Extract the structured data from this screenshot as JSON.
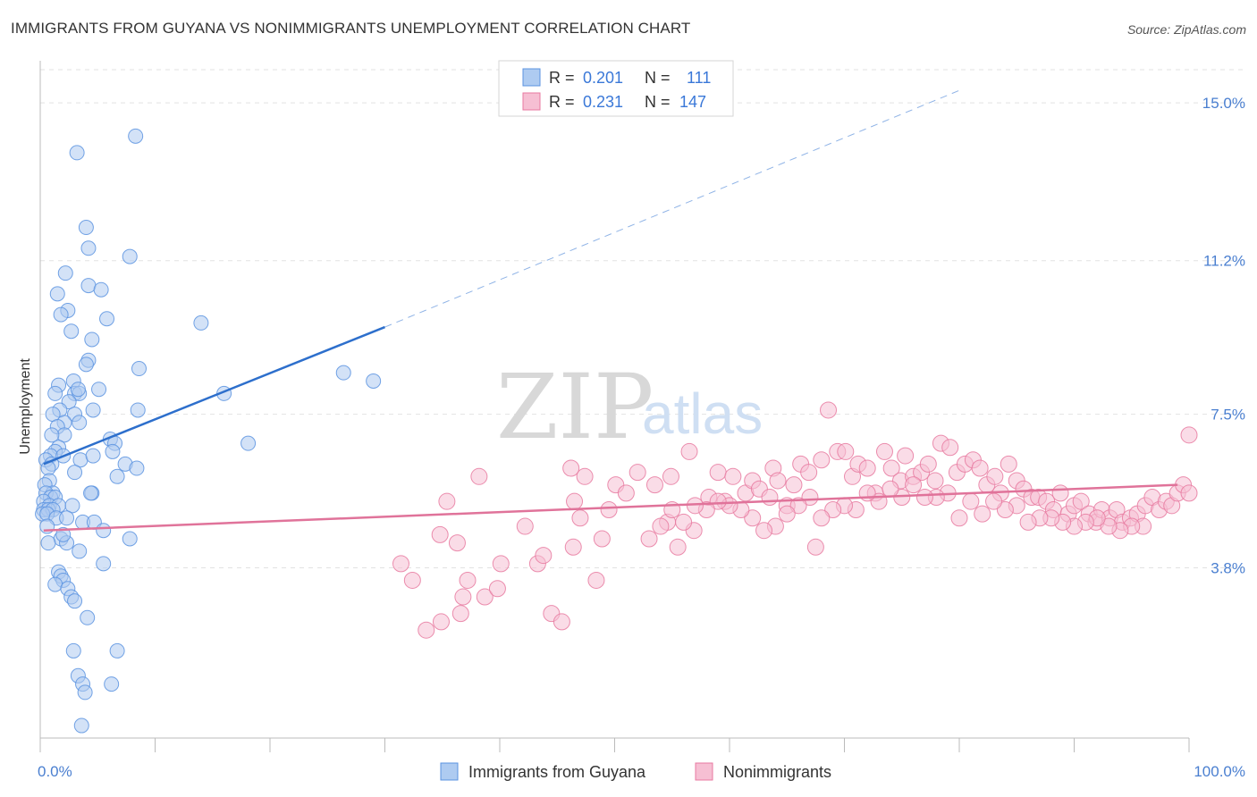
{
  "title": "IMMIGRANTS FROM GUYANA VS NONIMMIGRANTS UNEMPLOYMENT CORRELATION CHART",
  "source": "Source: ZipAtlas.com",
  "watermark": {
    "zip": "ZIP",
    "atlas": "atlas"
  },
  "chart_data": {
    "type": "scatter",
    "ylabel": "Unemployment",
    "xlabel": "",
    "xlim": [
      0,
      100
    ],
    "ylim": [
      -0.3,
      15.8
    ],
    "y_ticks": [
      {
        "value": 15.0,
        "label": "15.0%"
      },
      {
        "value": 11.2,
        "label": "11.2%"
      },
      {
        "value": 7.5,
        "label": "7.5%"
      },
      {
        "value": 3.8,
        "label": "3.8%"
      }
    ],
    "x_tick_labels": {
      "left": "0.0%",
      "right": "100.0%"
    },
    "legend": {
      "rows": [
        {
          "r_label": "R =",
          "r_value": "0.201",
          "n_label": "N =",
          "n_value": "111"
        },
        {
          "r_label": "R =",
          "r_value": "0.231",
          "n_label": "N =",
          "n_value": "147"
        }
      ]
    },
    "series": [
      {
        "name": "Immigrants from Guyana",
        "color": "#5b93e0",
        "fill": "#aecbf1",
        "trend": {
          "x0": 0.3,
          "y0": 6.3,
          "x1": 30,
          "y1": 9.6,
          "x_end": 80,
          "y_end": 15.3
        },
        "points": [
          [
            3.2,
            13.8
          ],
          [
            8.3,
            14.2
          ],
          [
            4.0,
            12.0
          ],
          [
            4.2,
            11.5
          ],
          [
            7.8,
            11.3
          ],
          [
            2.2,
            10.9
          ],
          [
            1.5,
            10.4
          ],
          [
            4.2,
            10.6
          ],
          [
            5.3,
            10.5
          ],
          [
            2.4,
            10.0
          ],
          [
            1.8,
            9.9
          ],
          [
            5.8,
            9.8
          ],
          [
            2.7,
            9.5
          ],
          [
            14.0,
            9.7
          ],
          [
            4.5,
            9.3
          ],
          [
            4.2,
            8.8
          ],
          [
            4.0,
            8.7
          ],
          [
            8.6,
            8.6
          ],
          [
            26.4,
            8.5
          ],
          [
            29.0,
            8.3
          ],
          [
            2.9,
            8.3
          ],
          [
            1.6,
            8.2
          ],
          [
            3.0,
            8.0
          ],
          [
            3.4,
            8.0
          ],
          [
            3.3,
            8.1
          ],
          [
            5.1,
            8.1
          ],
          [
            1.3,
            8.0
          ],
          [
            16.0,
            8.0
          ],
          [
            2.5,
            7.8
          ],
          [
            1.7,
            7.6
          ],
          [
            3.0,
            7.5
          ],
          [
            4.6,
            7.6
          ],
          [
            8.5,
            7.6
          ],
          [
            1.1,
            7.5
          ],
          [
            2.1,
            7.3
          ],
          [
            1.5,
            7.2
          ],
          [
            3.4,
            7.3
          ],
          [
            2.1,
            7.0
          ],
          [
            1.0,
            7.0
          ],
          [
            6.1,
            6.9
          ],
          [
            6.5,
            6.8
          ],
          [
            1.6,
            6.7
          ],
          [
            18.1,
            6.8
          ],
          [
            1.3,
            6.6
          ],
          [
            0.9,
            6.5
          ],
          [
            3.5,
            6.4
          ],
          [
            4.6,
            6.5
          ],
          [
            6.3,
            6.6
          ],
          [
            0.5,
            6.4
          ],
          [
            1.0,
            6.3
          ],
          [
            0.7,
            6.2
          ],
          [
            7.4,
            6.3
          ],
          [
            8.4,
            6.2
          ],
          [
            3.0,
            6.1
          ],
          [
            6.7,
            6.0
          ],
          [
            0.8,
            5.9
          ],
          [
            0.4,
            5.8
          ],
          [
            4.5,
            5.6
          ],
          [
            1.1,
            5.6
          ],
          [
            0.5,
            5.6
          ],
          [
            0.9,
            5.5
          ],
          [
            1.3,
            5.5
          ],
          [
            0.3,
            5.4
          ],
          [
            0.8,
            5.3
          ],
          [
            1.6,
            5.3
          ],
          [
            2.8,
            5.3
          ],
          [
            0.3,
            5.2
          ],
          [
            0.7,
            5.2
          ],
          [
            1.1,
            5.2
          ],
          [
            0.2,
            5.1
          ],
          [
            0.6,
            5.1
          ],
          [
            1.4,
            5.0
          ],
          [
            2.3,
            5.0
          ],
          [
            3.7,
            4.9
          ],
          [
            4.7,
            4.9
          ],
          [
            0.6,
            4.8
          ],
          [
            5.5,
            4.7
          ],
          [
            1.8,
            4.5
          ],
          [
            2.3,
            4.4
          ],
          [
            7.8,
            4.5
          ],
          [
            0.7,
            4.4
          ],
          [
            5.5,
            3.9
          ],
          [
            1.6,
            3.7
          ],
          [
            1.8,
            3.6
          ],
          [
            2.0,
            3.5
          ],
          [
            1.3,
            3.4
          ],
          [
            2.4,
            3.3
          ],
          [
            2.7,
            3.1
          ],
          [
            3.0,
            3.0
          ],
          [
            4.1,
            2.6
          ],
          [
            2.9,
            1.8
          ],
          [
            6.7,
            1.8
          ],
          [
            3.3,
            1.2
          ],
          [
            3.7,
            1.0
          ],
          [
            6.2,
            1.0
          ],
          [
            3.9,
            0.8
          ],
          [
            3.6,
            0.0
          ],
          [
            2.0,
            4.6
          ],
          [
            3.4,
            4.2
          ],
          [
            4.4,
            5.6
          ],
          [
            2.0,
            6.5
          ]
        ]
      },
      {
        "name": "Nonimmigrants",
        "color": "#e87aa0",
        "fill": "#f6bfd3",
        "trend": {
          "x0": 0.3,
          "y0": 4.7,
          "x1": 99,
          "y1": 5.8
        },
        "points": [
          [
            35.4,
            5.4
          ],
          [
            38.2,
            6.0
          ],
          [
            34.8,
            4.6
          ],
          [
            36.3,
            4.4
          ],
          [
            37.2,
            3.5
          ],
          [
            36.8,
            3.1
          ],
          [
            32.4,
            3.5
          ],
          [
            31.4,
            3.9
          ],
          [
            34.9,
            2.5
          ],
          [
            33.6,
            2.3
          ],
          [
            36.6,
            2.7
          ],
          [
            38.7,
            3.1
          ],
          [
            39.8,
            3.3
          ],
          [
            40.1,
            3.9
          ],
          [
            43.3,
            3.9
          ],
          [
            42.2,
            4.8
          ],
          [
            43.8,
            4.1
          ],
          [
            44.5,
            2.7
          ],
          [
            45.4,
            2.5
          ],
          [
            46.4,
            4.3
          ],
          [
            47.0,
            5.0
          ],
          [
            46.5,
            5.4
          ],
          [
            47.4,
            6.0
          ],
          [
            46.2,
            6.2
          ],
          [
            48.4,
            3.5
          ],
          [
            48.9,
            4.5
          ],
          [
            50.1,
            5.8
          ],
          [
            49.5,
            5.2
          ],
          [
            51.0,
            5.6
          ],
          [
            52.0,
            6.1
          ],
          [
            53.0,
            4.5
          ],
          [
            53.5,
            5.8
          ],
          [
            54.6,
            4.9
          ],
          [
            54.9,
            6.0
          ],
          [
            55.5,
            4.3
          ],
          [
            56.5,
            6.6
          ],
          [
            56.9,
            4.7
          ],
          [
            58.2,
            5.5
          ],
          [
            59.0,
            6.1
          ],
          [
            59.6,
            5.4
          ],
          [
            60.3,
            6.0
          ],
          [
            61.4,
            5.6
          ],
          [
            62.0,
            5.9
          ],
          [
            62.6,
            5.7
          ],
          [
            63.5,
            5.5
          ],
          [
            63.8,
            6.2
          ],
          [
            64.2,
            5.9
          ],
          [
            65.0,
            5.3
          ],
          [
            65.6,
            5.8
          ],
          [
            66.2,
            6.3
          ],
          [
            66.9,
            6.1
          ],
          [
            67.5,
            4.3
          ],
          [
            68.0,
            6.4
          ],
          [
            68.6,
            7.6
          ],
          [
            69.4,
            6.6
          ],
          [
            70.1,
            6.6
          ],
          [
            70.7,
            6.0
          ],
          [
            71.2,
            6.3
          ],
          [
            72.0,
            6.2
          ],
          [
            72.7,
            5.6
          ],
          [
            73.5,
            6.6
          ],
          [
            74.1,
            6.2
          ],
          [
            74.9,
            5.9
          ],
          [
            75.3,
            6.5
          ],
          [
            76.0,
            6.0
          ],
          [
            76.7,
            6.1
          ],
          [
            77.3,
            6.3
          ],
          [
            77.9,
            5.9
          ],
          [
            78.4,
            6.8
          ],
          [
            79.2,
            6.7
          ],
          [
            79.8,
            6.1
          ],
          [
            80.5,
            6.3
          ],
          [
            81.2,
            6.4
          ],
          [
            81.8,
            6.2
          ],
          [
            82.4,
            5.8
          ],
          [
            83.1,
            6.0
          ],
          [
            83.6,
            5.6
          ],
          [
            84.3,
            6.3
          ],
          [
            85.0,
            5.9
          ],
          [
            85.6,
            5.7
          ],
          [
            86.3,
            5.5
          ],
          [
            86.9,
            5.5
          ],
          [
            87.6,
            5.4
          ],
          [
            88.2,
            5.2
          ],
          [
            88.8,
            5.6
          ],
          [
            89.5,
            5.1
          ],
          [
            90.0,
            5.3
          ],
          [
            90.6,
            5.4
          ],
          [
            91.3,
            5.1
          ],
          [
            91.9,
            4.9
          ],
          [
            92.4,
            5.2
          ],
          [
            93.1,
            5.0
          ],
          [
            93.7,
            5.2
          ],
          [
            94.2,
            4.9
          ],
          [
            94.9,
            5.0
          ],
          [
            95.5,
            5.1
          ],
          [
            96.2,
            5.3
          ],
          [
            96.8,
            5.5
          ],
          [
            97.4,
            5.2
          ],
          [
            98.0,
            5.4
          ],
          [
            98.5,
            5.3
          ],
          [
            99.0,
            5.6
          ],
          [
            99.5,
            5.8
          ],
          [
            100.0,
            5.6
          ],
          [
            96.0,
            4.8
          ],
          [
            95.0,
            4.8
          ],
          [
            94.0,
            4.7
          ],
          [
            93.0,
            4.8
          ],
          [
            92.0,
            5.0
          ],
          [
            91.0,
            4.9
          ],
          [
            90.0,
            4.8
          ],
          [
            89.0,
            4.9
          ],
          [
            88.0,
            5.0
          ],
          [
            87.0,
            5.0
          ],
          [
            86.0,
            4.9
          ],
          [
            85.0,
            5.3
          ],
          [
            84.0,
            5.2
          ],
          [
            83.0,
            5.4
          ],
          [
            82.0,
            5.1
          ],
          [
            81.0,
            5.4
          ],
          [
            80.0,
            5.0
          ],
          [
            79.0,
            5.6
          ],
          [
            78.0,
            5.5
          ],
          [
            77.0,
            5.5
          ],
          [
            76.0,
            5.8
          ],
          [
            75.0,
            5.5
          ],
          [
            74.0,
            5.7
          ],
          [
            73.0,
            5.4
          ],
          [
            72.0,
            5.6
          ],
          [
            71.0,
            5.2
          ],
          [
            70.0,
            5.3
          ],
          [
            69.0,
            5.2
          ],
          [
            68.0,
            5.0
          ],
          [
            67.0,
            5.5
          ],
          [
            66.0,
            5.3
          ],
          [
            65.0,
            5.1
          ],
          [
            64.0,
            4.8
          ],
          [
            63.0,
            4.7
          ],
          [
            62.0,
            5.0
          ],
          [
            61.0,
            5.2
          ],
          [
            60.0,
            5.3
          ],
          [
            59.0,
            5.4
          ],
          [
            58.0,
            5.2
          ],
          [
            57.0,
            5.3
          ],
          [
            56.0,
            4.9
          ],
          [
            55.0,
            5.2
          ],
          [
            54.0,
            4.8
          ],
          [
            100.0,
            7.0
          ]
        ]
      }
    ]
  }
}
